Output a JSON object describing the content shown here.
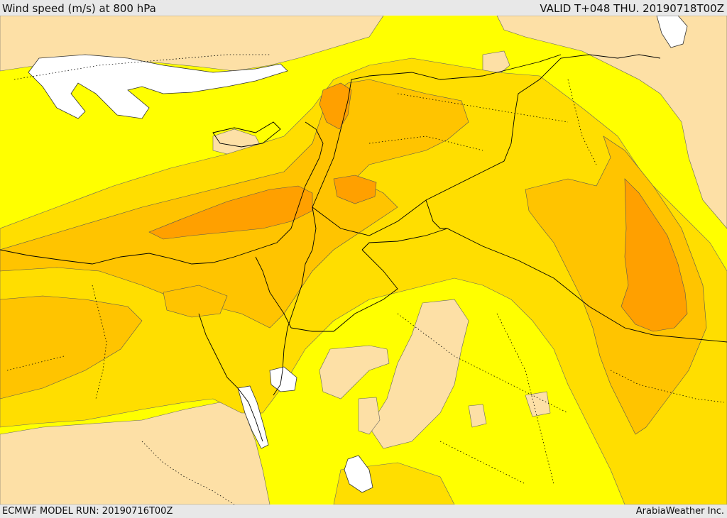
{
  "header": {
    "title": "Wind speed (m/s) at 800 hPa",
    "valid": "VALID T+048 THU. 20190718T00Z"
  },
  "footer": {
    "model_run": "ECMWF MODEL RUN: 20190716T00Z",
    "credit": "ArabiaWeather Inc."
  },
  "colors": {
    "sea_white": "#ffffff",
    "calm_peach": "#fde0a6",
    "bright_yellow": "#ffff00",
    "gold": "#ffde00",
    "amber": "#ffc400",
    "deep_orange": "#ffa000",
    "contour_line": "#555555",
    "border_line": "#000000"
  }
}
